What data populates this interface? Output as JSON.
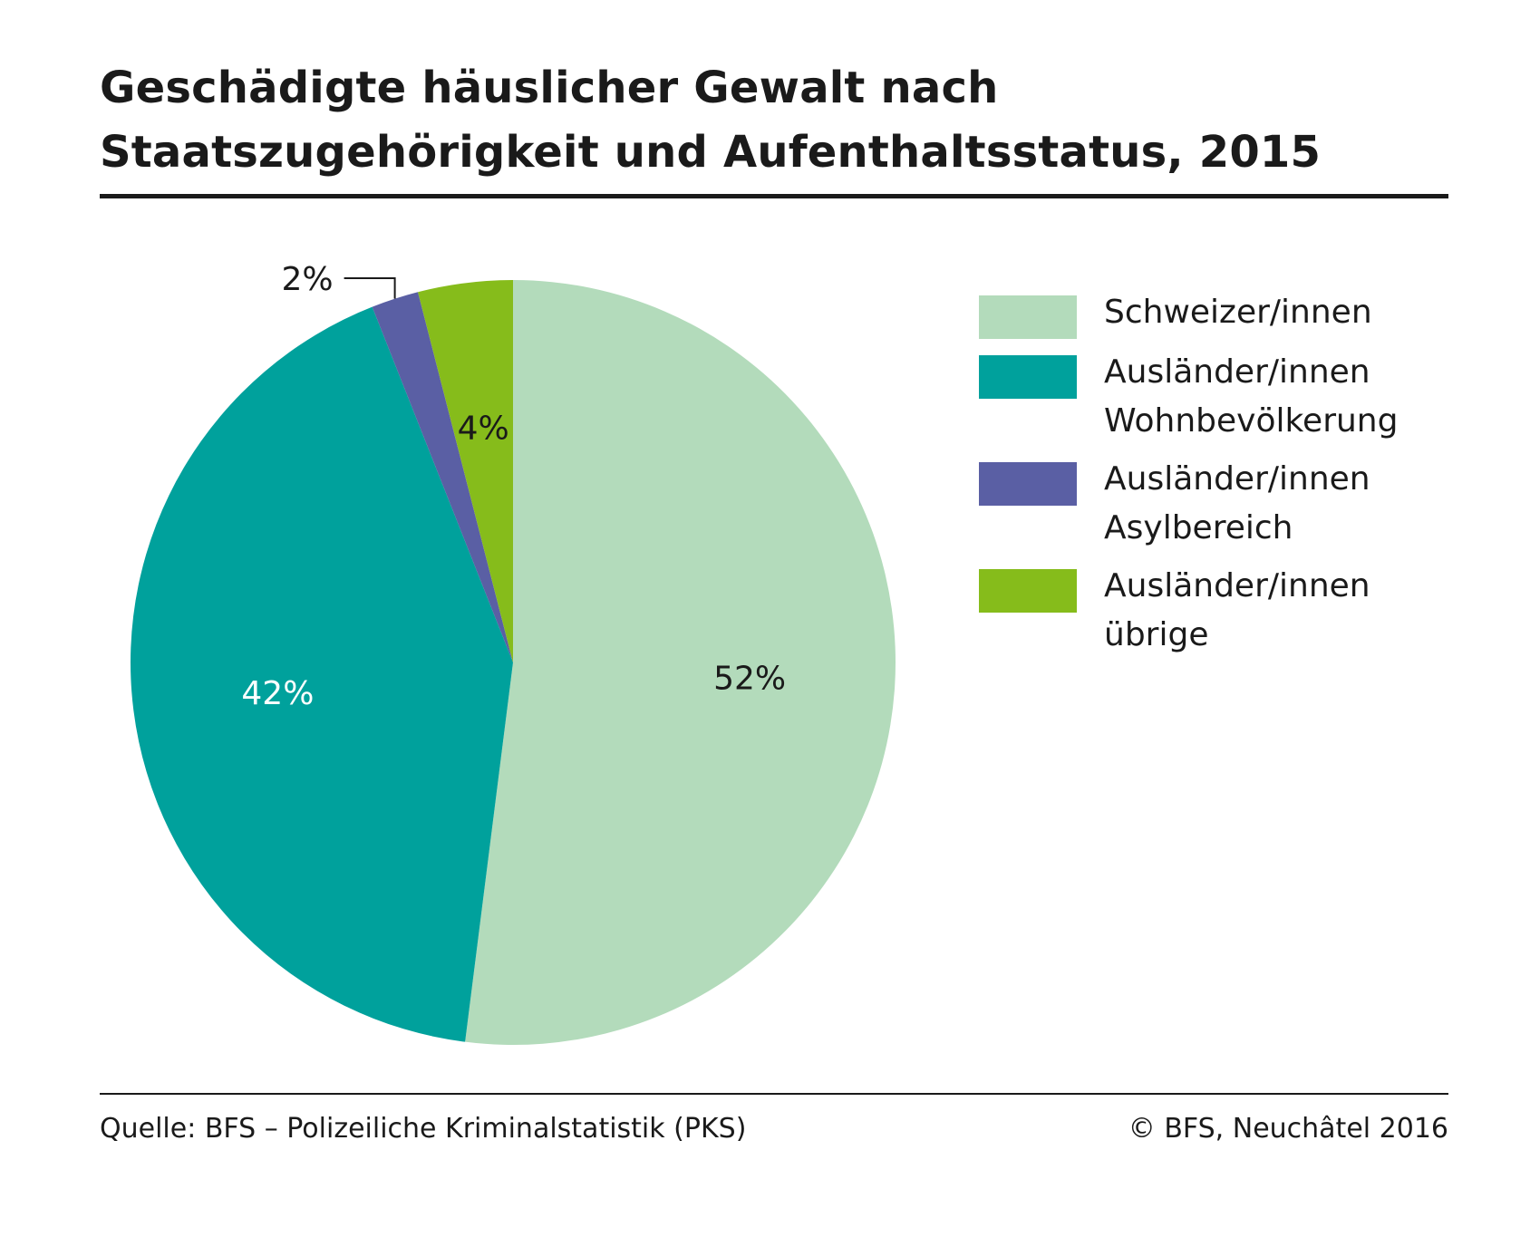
{
  "title": {
    "line1": "Geschädigte häuslicher Gewalt nach",
    "line2": "Staatszugehörigkeit und Aufenthaltsstatus, 2015"
  },
  "footer": {
    "source": "Quelle: BFS – Polizeiliche Kriminalstatistik (PKS)",
    "copyright": "© BFS, Neuchâtel 2016"
  },
  "legend": {
    "items": [
      {
        "line1": "Schweizer/innen",
        "line2": ""
      },
      {
        "line1": "Ausländer/innen",
        "line2": "Wohnbevölkerung"
      },
      {
        "line1": "Ausländer/innen",
        "line2": "Asylbereich"
      },
      {
        "line1": "Ausländer/innen",
        "line2": "übrige"
      }
    ]
  },
  "chart_data": {
    "type": "pie",
    "title": "Geschädigte häuslicher Gewalt nach Staatszugehörigkeit und Aufenthaltsstatus, 2015",
    "unit": "%",
    "categories": [
      "Schweizer/innen",
      "Ausländer/innen Wohnbevölkerung",
      "Ausländer/innen Asylbereich",
      "Ausländer/innen übrige"
    ],
    "values": [
      52,
      42,
      2,
      4
    ],
    "labels": [
      "52%",
      "42%",
      "2%",
      "4%"
    ],
    "colors": [
      "#b3dbbb",
      "#00a19c",
      "#5a5fa4",
      "#86bc1b"
    ],
    "label_colors": [
      "#1a1a1a",
      "#ffffff",
      "#1a1a1a",
      "#1a1a1a"
    ],
    "start_angle": "12 o'clock",
    "direction": "clockwise",
    "legend_position": "right"
  }
}
